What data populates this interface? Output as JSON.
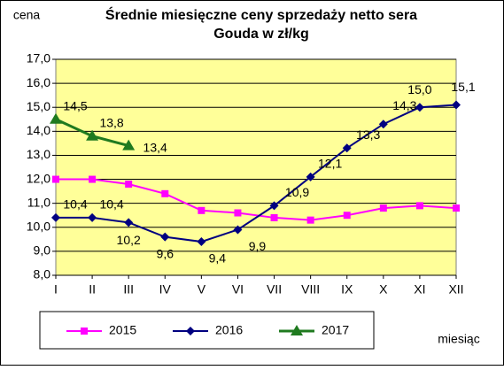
{
  "chart_data": {
    "type": "line",
    "title": [
      "Średnie miesięczne ceny sprzedaży netto sera",
      "Gouda w zł/kg"
    ],
    "y_label": "cena",
    "x_label": "miesiąc",
    "categories": [
      "I",
      "II",
      "III",
      "IV",
      "V",
      "VI",
      "VII",
      "VIII",
      "IX",
      "X",
      "XI",
      "XII"
    ],
    "ylim": [
      8,
      17
    ],
    "yticks": [
      {
        "value": 8,
        "label": "8,0"
      },
      {
        "value": 9,
        "label": "9,0"
      },
      {
        "value": 10,
        "label": "10,0"
      },
      {
        "value": 11,
        "label": "11,0"
      },
      {
        "value": 12,
        "label": "12,0"
      },
      {
        "value": 13,
        "label": "13,0"
      },
      {
        "value": 14,
        "label": "14,0"
      },
      {
        "value": 15,
        "label": "15,0"
      },
      {
        "value": 16,
        "label": "16,0"
      },
      {
        "value": 17,
        "label": "17,0"
      }
    ],
    "grid": true,
    "legend": "bottom",
    "series": [
      {
        "name": "2015",
        "color": "#ff00ff",
        "marker": "square",
        "values": [
          12.0,
          12.0,
          11.8,
          11.4,
          10.7,
          10.6,
          10.4,
          10.3,
          10.5,
          10.8,
          10.9,
          10.8
        ]
      },
      {
        "name": "2016",
        "color": "#000080",
        "marker": "diamond",
        "values": [
          10.4,
          10.4,
          10.2,
          9.6,
          9.4,
          9.9,
          10.9,
          12.1,
          13.3,
          14.3,
          15.0,
          15.1
        ],
        "value_labels": [
          "10,4",
          "10,4",
          "10,2",
          "9,6",
          "9,4",
          "9,9",
          "10,9",
          "12,1",
          "13,3",
          "14,3",
          "15,0",
          "15,1"
        ]
      },
      {
        "name": "2017",
        "color": "#1f7a1f",
        "marker": "triangle",
        "values": [
          14.5,
          13.8,
          13.4,
          null,
          null,
          null,
          null,
          null,
          null,
          null,
          null,
          null
        ],
        "value_labels": [
          "14,5",
          "13,8",
          "13,4",
          null,
          null,
          null,
          null,
          null,
          null,
          null,
          null,
          null
        ]
      }
    ]
  }
}
